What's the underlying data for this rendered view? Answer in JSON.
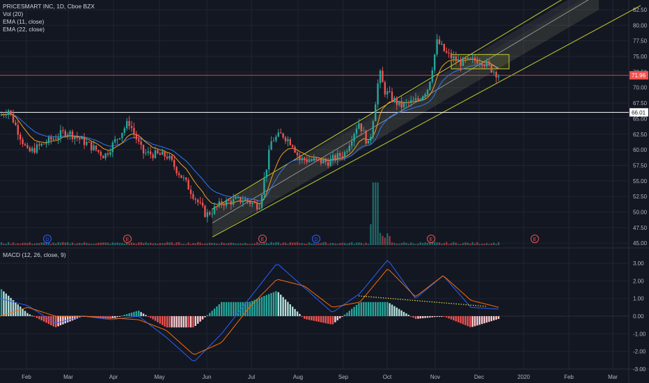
{
  "legend": {
    "title": "PRICESMART INC, 1D, Cboe BZX",
    "vol": "Vol (20)",
    "ema1": "EMA (11, close)",
    "ema2": "EMA (22, close)",
    "macd": "MACD (12, 26, close, 9)"
  },
  "colors": {
    "background": "#131722",
    "grid": "#1f2433",
    "up": "#26a69a",
    "down": "#ef5350",
    "channel": "#c5cf2d",
    "ema_fast": "#f7a21b",
    "ema_slow": "#3179f5",
    "macd_line": "#2962ff",
    "signal_line": "#ff6d00",
    "trendline": "#e8e34a",
    "last_price": "#ef5350"
  },
  "chart_data": [
    {
      "type": "candlestick",
      "title": "PRICESMART INC",
      "y_ticks": [
        "82.50",
        "80.00",
        "77.50",
        "75.00",
        "72.50",
        "70.00",
        "67.50",
        "65.00",
        "62.50",
        "60.00",
        "57.50",
        "55.00",
        "52.50",
        "50.00",
        "47.50",
        "45.00"
      ],
      "ylim": [
        45,
        83.5
      ],
      "x_ticks": [
        "Feb",
        "Mar",
        "Apr",
        "May",
        "Jun",
        "Jul",
        "Aug",
        "Sep",
        "Oct",
        "Nov",
        "Dec",
        "2020",
        "Feb",
        "Mar"
      ],
      "price_labels": {
        "last": "71.96",
        "level": "66.01"
      },
      "horizontal_levels": [
        66.01,
        71.96
      ],
      "events": [
        "D",
        "E",
        "E",
        "D",
        "E",
        "E",
        "E"
      ],
      "key_points": [
        {
          "date": "Jan",
          "price": 65.5
        },
        {
          "date": "Feb",
          "price": 59.5
        },
        {
          "date": "Mar",
          "price": 63.0
        },
        {
          "date": "Apr",
          "price": 60.5
        },
        {
          "date": "May",
          "price": 60.0
        },
        {
          "date": "early Jun",
          "price": 49.5
        },
        {
          "date": "Jul",
          "price": 51.5
        },
        {
          "date": "mid Jul",
          "price": 62.5
        },
        {
          "date": "Aug",
          "price": 58.5
        },
        {
          "date": "Sep",
          "price": 64.5
        },
        {
          "date": "late Sep",
          "price": 60.5
        },
        {
          "date": "early Oct",
          "price": 73.0
        },
        {
          "date": "mid Oct",
          "price": 67.0
        },
        {
          "date": "Nov",
          "price": 78.0
        },
        {
          "date": "late Nov",
          "price": 74.5
        },
        {
          "date": "mid Dec",
          "price": 71.96
        }
      ]
    },
    {
      "type": "line",
      "title": "MACD (12, 26, close, 9)",
      "y_ticks": [
        "3.00",
        "2.00",
        "1.00",
        "0.00",
        "-1.00",
        "-2.00",
        "-3.00"
      ],
      "ylim": [
        -3.3,
        3.4
      ],
      "series": [
        {
          "name": "MACD",
          "values": [
            1.0,
            0.6,
            -0.4,
            0.0,
            -0.2,
            0.0,
            -1.2,
            -2.6,
            -1.0,
            1.0,
            3.0,
            1.6,
            0.2,
            1.3,
            3.2,
            1.0,
            2.3,
            0.5,
            0.4
          ]
        },
        {
          "name": "Signal",
          "values": [
            0.0,
            0.5,
            0.0,
            0.0,
            -0.1,
            -0.2,
            -0.8,
            -2.2,
            -1.5,
            0.5,
            2.1,
            1.7,
            0.5,
            0.8,
            2.7,
            1.1,
            2.3,
            0.9,
            0.5
          ]
        }
      ]
    }
  ]
}
